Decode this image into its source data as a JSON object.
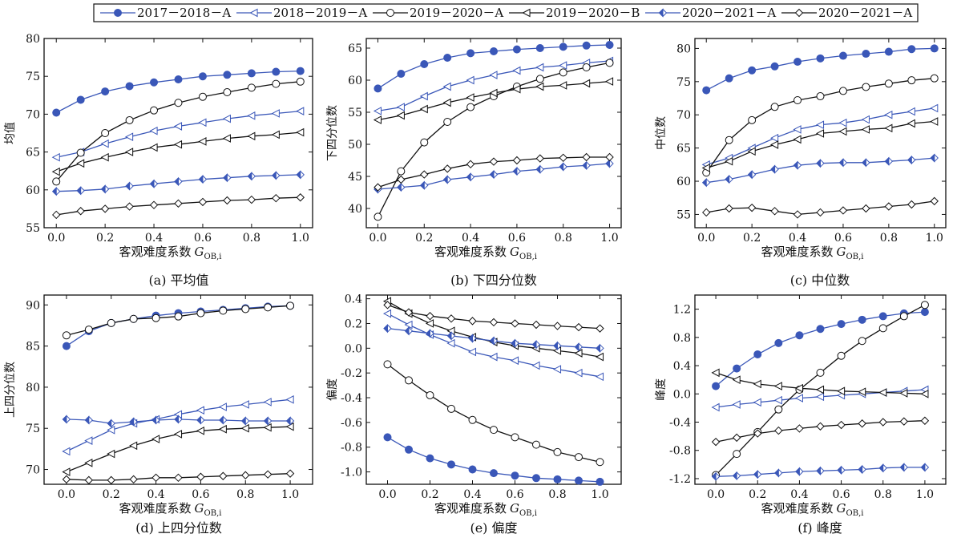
{
  "legend": {
    "items": [
      {
        "label": "2017－2018－A",
        "color": "#3a57b8",
        "marker": "circle-filled"
      },
      {
        "label": "2018－2019－A",
        "color": "#3a57b8",
        "marker": "triangle-left-open"
      },
      {
        "label": "2019－2020－A",
        "color": "#111111",
        "marker": "circle-open"
      },
      {
        "label": "2019－2020－B",
        "color": "#111111",
        "marker": "triangle-left-open"
      },
      {
        "label": "2020－2021－A",
        "color": "#3a57b8",
        "marker": "diamond-half"
      },
      {
        "label": "2020－2021－A",
        "color": "#111111",
        "marker": "diamond-open"
      }
    ]
  },
  "chart_data": [
    {
      "type": "line",
      "caption": "(a) 平均值",
      "ylabel": "均值",
      "xlabel": "客观难度系数",
      "xlabel_var": "G",
      "xlabel_sub": "OB,i",
      "x": [
        0.0,
        0.1,
        0.2,
        0.3,
        0.4,
        0.5,
        0.6,
        0.7,
        0.8,
        0.9,
        1.0
      ],
      "xlim": [
        -0.05,
        1.05
      ],
      "xticks": [
        0.0,
        0.2,
        0.4,
        0.6,
        0.8,
        1.0
      ],
      "ylim": [
        55,
        80
      ],
      "yticks": [
        55,
        60,
        65,
        70,
        75,
        80
      ],
      "series": [
        {
          "name": "2017－2018－A",
          "values": [
            70.2,
            71.9,
            73.0,
            73.7,
            74.2,
            74.6,
            75.0,
            75.2,
            75.4,
            75.6,
            75.7
          ]
        },
        {
          "name": "2018－2019－A",
          "values": [
            64.3,
            65.0,
            66.1,
            67.0,
            67.8,
            68.4,
            68.9,
            69.4,
            69.8,
            70.1,
            70.4
          ]
        },
        {
          "name": "2019－2020－A",
          "values": [
            61.1,
            64.9,
            67.5,
            69.2,
            70.5,
            71.5,
            72.3,
            72.9,
            73.5,
            74.0,
            74.3
          ]
        },
        {
          "name": "2019－2020－B",
          "values": [
            62.4,
            63.5,
            64.3,
            65.0,
            65.6,
            66.0,
            66.4,
            66.8,
            67.1,
            67.3,
            67.6
          ]
        },
        {
          "name": "2020－2021－A",
          "values": [
            59.8,
            59.9,
            60.1,
            60.5,
            60.8,
            61.1,
            61.4,
            61.6,
            61.8,
            61.9,
            62.0
          ]
        },
        {
          "name": "2020－2021－A",
          "values": [
            56.7,
            57.2,
            57.5,
            57.8,
            58.0,
            58.2,
            58.4,
            58.6,
            58.7,
            58.9,
            59.0
          ]
        }
      ]
    },
    {
      "type": "line",
      "caption": "(b) 下四分位数",
      "ylabel": "下四分位数",
      "xlabel": "客观难度系数",
      "xlabel_var": "G",
      "xlabel_sub": "OB,i",
      "x": [
        0.0,
        0.1,
        0.2,
        0.3,
        0.4,
        0.5,
        0.6,
        0.7,
        0.8,
        0.9,
        1.0
      ],
      "xlim": [
        -0.05,
        1.05
      ],
      "xticks": [
        0.0,
        0.2,
        0.4,
        0.6,
        0.8,
        1.0
      ],
      "ylim": [
        37,
        66.5
      ],
      "yticks": [
        40,
        45,
        50,
        55,
        60,
        65
      ],
      "series": [
        {
          "name": "2017－2018－A",
          "values": [
            58.7,
            61.0,
            62.5,
            63.5,
            64.2,
            64.5,
            64.8,
            65.0,
            65.2,
            65.4,
            65.5
          ]
        },
        {
          "name": "2018－2019－A",
          "values": [
            55.2,
            55.8,
            57.5,
            59.0,
            60.0,
            60.8,
            61.5,
            62.0,
            62.3,
            62.7,
            63.0
          ]
        },
        {
          "name": "2019－2020－A",
          "values": [
            38.7,
            45.8,
            50.3,
            53.5,
            55.8,
            57.5,
            59.0,
            60.2,
            61.2,
            62.0,
            62.7
          ]
        },
        {
          "name": "2019－2020－B",
          "values": [
            53.8,
            54.5,
            55.5,
            56.5,
            57.3,
            58.0,
            58.6,
            59.0,
            59.2,
            59.5,
            59.8
          ]
        },
        {
          "name": "2020－2021－A",
          "values": [
            43.0,
            43.3,
            43.6,
            44.5,
            44.9,
            45.3,
            45.8,
            46.1,
            46.5,
            46.7,
            47.0
          ]
        },
        {
          "name": "2020－2021－A",
          "values": [
            43.3,
            44.5,
            45.3,
            46.2,
            46.9,
            47.3,
            47.5,
            47.8,
            47.9,
            48.0,
            48.0
          ]
        }
      ]
    },
    {
      "type": "line",
      "caption": "(c) 中位数",
      "ylabel": "中位数",
      "xlabel": "客观难度系数",
      "xlabel_var": "G",
      "xlabel_sub": "OB,i",
      "x": [
        0.0,
        0.1,
        0.2,
        0.3,
        0.4,
        0.5,
        0.6,
        0.7,
        0.8,
        0.9,
        1.0
      ],
      "xlim": [
        -0.05,
        1.05
      ],
      "xticks": [
        0.0,
        0.2,
        0.4,
        0.6,
        0.8,
        1.0
      ],
      "ylim": [
        53,
        81.5
      ],
      "yticks": [
        55,
        60,
        65,
        70,
        75,
        80
      ],
      "series": [
        {
          "name": "2017－2018－A",
          "values": [
            73.7,
            75.5,
            76.7,
            77.3,
            78.0,
            78.5,
            78.9,
            79.2,
            79.5,
            79.9,
            80.0
          ]
        },
        {
          "name": "2018－2019－A",
          "values": [
            62.5,
            63.5,
            65.0,
            66.5,
            67.8,
            68.5,
            68.8,
            69.3,
            70.0,
            70.5,
            71.0
          ]
        },
        {
          "name": "2019－2020－A",
          "values": [
            61.3,
            66.2,
            69.2,
            71.2,
            72.2,
            72.8,
            73.6,
            74.2,
            74.7,
            75.2,
            75.5
          ]
        },
        {
          "name": "2019－2020－B",
          "values": [
            62.0,
            63.0,
            64.5,
            65.5,
            66.3,
            67.2,
            67.5,
            67.8,
            68.0,
            68.7,
            69.0
          ]
        },
        {
          "name": "2020－2021－A",
          "values": [
            59.8,
            60.3,
            61.0,
            61.8,
            62.4,
            62.7,
            62.8,
            62.8,
            63.0,
            63.2,
            63.5
          ]
        },
        {
          "name": "2020－2021－A",
          "values": [
            55.3,
            55.9,
            56.0,
            55.5,
            55.0,
            55.3,
            55.6,
            55.9,
            56.2,
            56.5,
            57.0
          ]
        }
      ]
    },
    {
      "type": "line",
      "caption": "(d) 上四分位数",
      "ylabel": "上四分位数",
      "xlabel": "客观难度系数",
      "xlabel_var": "G",
      "xlabel_sub": "OB,i",
      "x": [
        0.0,
        0.1,
        0.2,
        0.3,
        0.4,
        0.5,
        0.6,
        0.7,
        0.8,
        0.9,
        1.0
      ],
      "xlim": [
        -0.1,
        1.1
      ],
      "xticks": [
        0.0,
        0.2,
        0.4,
        0.6,
        0.8,
        1.0
      ],
      "ylim": [
        68.2,
        91.2
      ],
      "yticks": [
        70,
        75,
        80,
        85,
        90
      ],
      "series": [
        {
          "name": "2017－2018－A",
          "values": [
            85.0,
            86.8,
            87.8,
            88.3,
            88.7,
            89.0,
            89.2,
            89.4,
            89.6,
            89.8,
            89.9
          ]
        },
        {
          "name": "2018－2019－A",
          "values": [
            72.2,
            73.5,
            74.8,
            75.6,
            76.1,
            76.7,
            77.2,
            77.6,
            77.9,
            78.2,
            78.5
          ]
        },
        {
          "name": "2019－2020－A",
          "values": [
            86.3,
            87.0,
            87.8,
            88.3,
            88.4,
            88.6,
            89.0,
            89.3,
            89.5,
            89.7,
            89.9
          ]
        },
        {
          "name": "2019－2020－B",
          "values": [
            69.7,
            70.8,
            71.9,
            72.9,
            73.7,
            74.3,
            74.7,
            74.9,
            75.0,
            75.1,
            75.2
          ]
        },
        {
          "name": "2020－2021－A",
          "values": [
            76.1,
            76.0,
            75.6,
            75.8,
            76.0,
            76.1,
            76.0,
            76.0,
            75.9,
            75.9,
            75.9
          ]
        },
        {
          "name": "2020－2021－A",
          "values": [
            68.8,
            68.7,
            68.7,
            68.8,
            69.0,
            69.0,
            69.1,
            69.2,
            69.3,
            69.4,
            69.5
          ]
        }
      ]
    },
    {
      "type": "line",
      "caption": "(e) 偏度",
      "ylabel": "偏度",
      "xlabel": "客观难度系数",
      "xlabel_var": "G",
      "xlabel_sub": "OB,i",
      "x": [
        0.0,
        0.1,
        0.2,
        0.3,
        0.4,
        0.5,
        0.6,
        0.7,
        0.8,
        0.9,
        1.0
      ],
      "xlim": [
        -0.1,
        1.1
      ],
      "xticks": [
        0.0,
        0.2,
        0.4,
        0.6,
        0.8,
        1.0
      ],
      "ylim": [
        -1.1,
        0.43
      ],
      "yticks": [
        -1.0,
        -0.8,
        -0.6,
        -0.4,
        -0.2,
        0.0,
        0.2,
        0.4
      ],
      "series": [
        {
          "name": "2017－2018－A",
          "values": [
            -0.72,
            -0.82,
            -0.89,
            -0.94,
            -0.98,
            -1.01,
            -1.03,
            -1.05,
            -1.06,
            -1.07,
            -1.08
          ]
        },
        {
          "name": "2018－2019－A",
          "values": [
            0.28,
            0.19,
            0.11,
            0.04,
            -0.03,
            -0.07,
            -0.1,
            -0.14,
            -0.17,
            -0.2,
            -0.23
          ]
        },
        {
          "name": "2019－2020－A",
          "values": [
            -0.13,
            -0.26,
            -0.38,
            -0.49,
            -0.58,
            -0.66,
            -0.72,
            -0.78,
            -0.84,
            -0.88,
            -0.92
          ]
        },
        {
          "name": "2019－2020－B",
          "values": [
            0.38,
            0.28,
            0.2,
            0.14,
            0.09,
            0.05,
            0.02,
            0.0,
            -0.02,
            -0.04,
            -0.07
          ]
        },
        {
          "name": "2020－2021－A",
          "values": [
            0.16,
            0.14,
            0.12,
            0.1,
            0.08,
            0.06,
            0.04,
            0.03,
            0.02,
            0.01,
            0.0
          ]
        },
        {
          "name": "2020－2021－A",
          "values": [
            0.35,
            0.29,
            0.26,
            0.24,
            0.22,
            0.21,
            0.2,
            0.19,
            0.18,
            0.17,
            0.16
          ]
        }
      ]
    },
    {
      "type": "line",
      "caption": "(f) 峰度",
      "ylabel": "峰度",
      "xlabel": "客观难度系数",
      "xlabel_var": "G",
      "xlabel_sub": "OB,i",
      "x": [
        0.0,
        0.1,
        0.2,
        0.3,
        0.4,
        0.5,
        0.6,
        0.7,
        0.8,
        0.9,
        1.0
      ],
      "xlim": [
        -0.1,
        1.1
      ],
      "xticks": [
        0.0,
        0.2,
        0.4,
        0.6,
        0.8,
        1.0
      ],
      "ylim": [
        -1.28,
        1.4
      ],
      "yticks": [
        -1.2,
        -0.8,
        -0.4,
        0.0,
        0.4,
        0.8,
        1.2
      ],
      "series": [
        {
          "name": "2017－2018－A",
          "values": [
            0.11,
            0.36,
            0.56,
            0.72,
            0.83,
            0.92,
            0.99,
            1.05,
            1.1,
            1.14,
            1.16
          ]
        },
        {
          "name": "2018－2019－A",
          "values": [
            -0.19,
            -0.15,
            -0.12,
            -0.09,
            -0.06,
            -0.04,
            -0.02,
            0.0,
            0.02,
            0.04,
            0.06
          ]
        },
        {
          "name": "2019－2020－A",
          "values": [
            -1.15,
            -0.85,
            -0.54,
            -0.22,
            0.06,
            0.3,
            0.54,
            0.75,
            0.93,
            1.1,
            1.26
          ]
        },
        {
          "name": "2019－2020－B",
          "values": [
            0.3,
            0.2,
            0.14,
            0.11,
            0.08,
            0.06,
            0.04,
            0.03,
            0.02,
            0.01,
            0.0
          ]
        },
        {
          "name": "2020－2021－A",
          "values": [
            -1.17,
            -1.16,
            -1.14,
            -1.12,
            -1.1,
            -1.09,
            -1.08,
            -1.07,
            -1.05,
            -1.04,
            -1.04
          ]
        },
        {
          "name": "2020－2021－A",
          "values": [
            -0.68,
            -0.62,
            -0.56,
            -0.52,
            -0.49,
            -0.46,
            -0.44,
            -0.42,
            -0.4,
            -0.39,
            -0.38
          ]
        }
      ]
    }
  ]
}
